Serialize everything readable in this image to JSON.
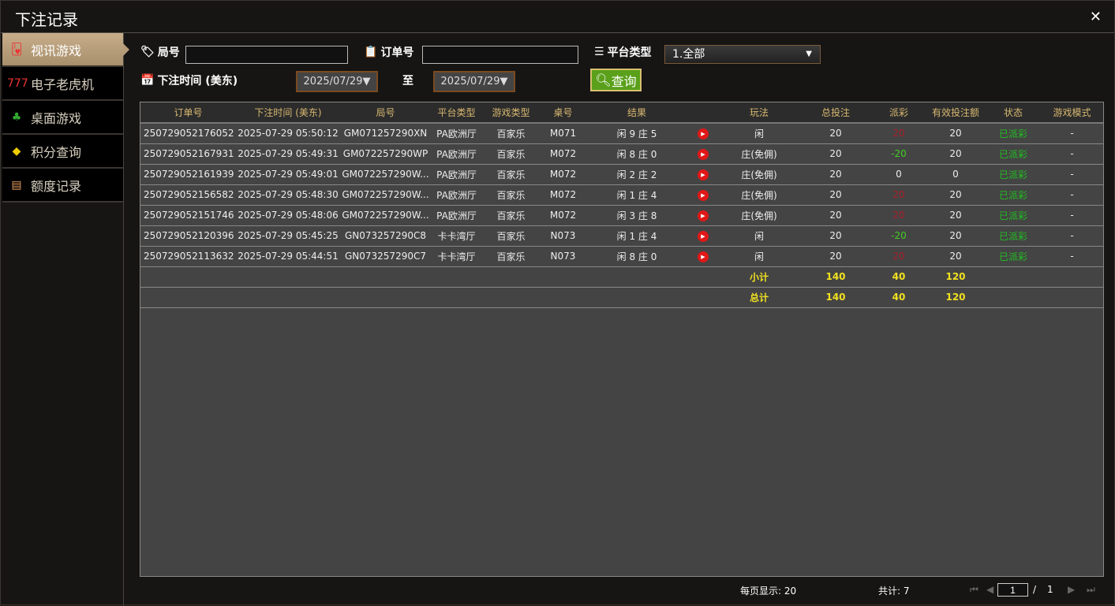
{
  "window": {
    "title": "下注记录",
    "close": "✕"
  },
  "sidebar": {
    "items": [
      {
        "label": "视讯游戏",
        "icon": "playing-cards-icon",
        "glyph": "🂻",
        "active": true
      },
      {
        "label": "电子老虎机",
        "icon": "slot-777-icon",
        "glyph": "777"
      },
      {
        "label": "桌面游戏",
        "icon": "casino-chips-icon",
        "glyph": "♣"
      },
      {
        "label": "积分查询",
        "icon": "diamond-icon",
        "glyph": "◆"
      },
      {
        "label": "额度记录",
        "icon": "document-icon",
        "glyph": "▤"
      }
    ]
  },
  "filters": {
    "round_label": "局号",
    "round_value": "",
    "order_label": "订单号",
    "order_value": "",
    "platform_label": "平台类型",
    "platform_value": "1.全部",
    "time_label": "下注时间 (美东)",
    "date_from": "2025/07/29▼",
    "to_label": "至",
    "date_to": "2025/07/29▼",
    "query_button": "查询"
  },
  "table": {
    "headers": [
      "订单号",
      "下注时间 (美东)",
      "局号",
      "平台类型",
      "游戏类型",
      "桌号",
      "结果",
      "",
      "玩法",
      "总投注",
      "派彩",
      "有效投注额",
      "状态",
      "游戏模式"
    ],
    "rows": [
      [
        "250729052176052",
        "2025-07-29 05:50:12",
        "GM071257290XN",
        "PA欧洲厅",
        "百家乐",
        "M071",
        "闲 9 庄 5",
        "",
        "闲",
        "20",
        "20",
        "20",
        "已派彩",
        "-"
      ],
      [
        "250729052167931",
        "2025-07-29 05:49:31",
        "GM072257290WP",
        "PA欧洲厅",
        "百家乐",
        "M072",
        "闲 8 庄 0",
        "",
        "庄(免佣)",
        "20",
        "-20",
        "20",
        "已派彩",
        "-"
      ],
      [
        "250729052161939",
        "2025-07-29 05:49:01",
        "GM072257290W...",
        "PA欧洲厅",
        "百家乐",
        "M072",
        "闲 2 庄 2",
        "",
        "庄(免佣)",
        "20",
        "0",
        "0",
        "已派彩",
        "-"
      ],
      [
        "250729052156582",
        "2025-07-29 05:48:30",
        "GM072257290W...",
        "PA欧洲厅",
        "百家乐",
        "M072",
        "闲 1 庄 4",
        "",
        "庄(免佣)",
        "20",
        "20",
        "20",
        "已派彩",
        "-"
      ],
      [
        "250729052151746",
        "2025-07-29 05:48:06",
        "GM072257290W...",
        "PA欧洲厅",
        "百家乐",
        "M072",
        "闲 3 庄 8",
        "",
        "庄(免佣)",
        "20",
        "20",
        "20",
        "已派彩",
        "-"
      ],
      [
        "250729052120396",
        "2025-07-29 05:45:25",
        "GN073257290C8",
        "卡卡湾厅",
        "百家乐",
        "N073",
        "闲 1 庄 4",
        "",
        "闲",
        "20",
        "-20",
        "20",
        "已派彩",
        "-"
      ],
      [
        "250729052113632",
        "2025-07-29 05:44:51",
        "GN073257290C7",
        "卡卡湾厅",
        "百家乐",
        "N073",
        "闲 8 庄 0",
        "",
        "闲",
        "20",
        "20",
        "20",
        "已派彩",
        "-"
      ]
    ],
    "payout_colors": [
      "red",
      "green",
      "white",
      "red",
      "red",
      "green",
      "red"
    ],
    "subtotal": {
      "label": "小计",
      "total_bet": "140",
      "payout": "40",
      "valid_bet": "120"
    },
    "total": {
      "label": "总计",
      "total_bet": "140",
      "payout": "40",
      "valid_bet": "120"
    }
  },
  "footer": {
    "per_page": "每页显示: 20",
    "count": "共计: 7",
    "page": "1",
    "sep": "/",
    "pages": "1"
  },
  "colors": {
    "accent_gold": "#d8b870",
    "query_green": "#5aa01a",
    "status_green": "#20c020",
    "loss_red": "#a8202a",
    "win_green": "#40d020",
    "total_yellow": "#f0e020"
  }
}
